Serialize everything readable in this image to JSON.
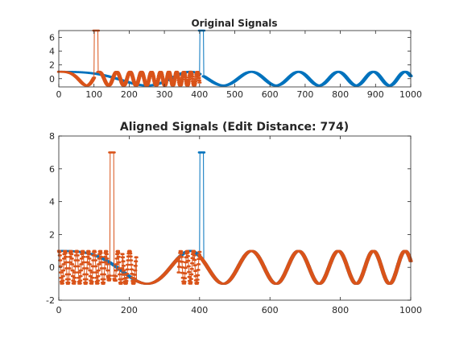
{
  "chart_data": [
    {
      "type": "line",
      "title": "Original Signals",
      "xlim": [
        0,
        1000
      ],
      "ylim": [
        -1.2,
        7
      ],
      "xticks": [
        0,
        100,
        200,
        300,
        400,
        500,
        600,
        700,
        800,
        900,
        1000
      ],
      "yticks": [
        0,
        2,
        4,
        6
      ],
      "xtick_labels": [
        "0",
        "100",
        "200",
        "300",
        "400",
        "500",
        "600",
        "700",
        "800",
        "900",
        "1000"
      ],
      "ytick_labels": [
        "0",
        "2",
        "4",
        "6"
      ],
      "grid": false,
      "series": [
        {
          "color": "#0072BD",
          "marker": "dot",
          "description": "slow chirp cos(2*pi*t^2/3e5-ish) with spike to 7 at x 400-410",
          "length": 1000,
          "spike": {
            "start": 400,
            "end": 410,
            "value": 7
          }
        },
        {
          "color": "#D95319",
          "marker": "dot",
          "description": "fast chirp, length 400, spike to 7 at x 100-110",
          "length": 400,
          "spike": {
            "start": 100,
            "end": 110,
            "value": 7
          }
        }
      ]
    },
    {
      "type": "line",
      "title": "Aligned Signals (Edit Distance: 774)",
      "xlim": [
        0,
        1000
      ],
      "ylim": [
        -2,
        8
      ],
      "xticks": [
        0,
        200,
        400,
        600,
        800,
        1000
      ],
      "yticks": [
        -2,
        0,
        2,
        4,
        6,
        8
      ],
      "xtick_labels": [
        "0",
        "200",
        "400",
        "600",
        "800",
        "1000"
      ],
      "ytick_labels": [
        "-2",
        "0",
        "2",
        "4",
        "6",
        "8"
      ],
      "grid": false,
      "series": [
        {
          "color": "#0072BD",
          "marker": "dot",
          "length": 1000,
          "spike": {
            "start": 400,
            "end": 410,
            "value": 7
          }
        },
        {
          "color": "#D95319",
          "marker": "dot",
          "length": 1000,
          "spike": {
            "start": 145,
            "end": 155,
            "value": 7
          }
        }
      ]
    }
  ]
}
